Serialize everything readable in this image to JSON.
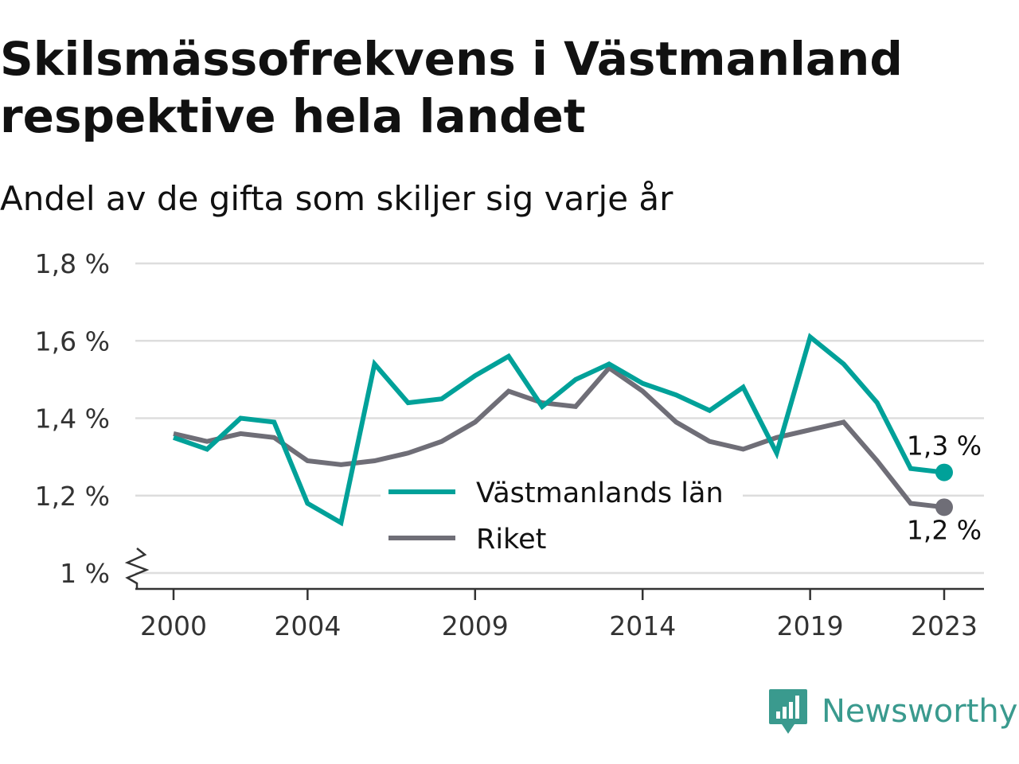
{
  "header": {
    "title": "Skilsmässofrekvens i Västmanland respektive hela landet",
    "subtitle": "Andel av de gifta som skiljer sig varje år"
  },
  "brand": {
    "name": "Newsworthy",
    "color": "#3a9a8e"
  },
  "chart_data": {
    "type": "line",
    "x": [
      2000,
      2001,
      2002,
      2003,
      2004,
      2005,
      2006,
      2007,
      2008,
      2009,
      2010,
      2011,
      2012,
      2013,
      2014,
      2015,
      2016,
      2017,
      2018,
      2019,
      2020,
      2021,
      2022,
      2023
    ],
    "series": [
      {
        "name": "Västmanlands län",
        "color": "#00a199",
        "values": [
          1.35,
          1.32,
          1.4,
          1.39,
          1.18,
          1.13,
          1.54,
          1.44,
          1.45,
          1.51,
          1.56,
          1.43,
          1.5,
          1.54,
          1.49,
          1.46,
          1.42,
          1.48,
          1.31,
          1.61,
          1.54,
          1.44,
          1.27,
          1.26
        ],
        "end_label": "1,3 %"
      },
      {
        "name": "Riket",
        "color": "#6f6e77",
        "values": [
          1.36,
          1.34,
          1.36,
          1.35,
          1.29,
          1.28,
          1.29,
          1.31,
          1.34,
          1.39,
          1.47,
          1.44,
          1.43,
          1.53,
          1.47,
          1.39,
          1.34,
          1.32,
          1.35,
          1.37,
          1.39,
          1.29,
          1.18,
          1.17
        ],
        "end_label": "1,2 %"
      }
    ],
    "xticks": [
      2000,
      2004,
      2009,
      2014,
      2019,
      2023
    ],
    "xtick_labels": [
      "2000",
      "2004",
      "2009",
      "2014",
      "2019",
      "2023"
    ],
    "yticks": [
      1.0,
      1.2,
      1.4,
      1.6,
      1.8
    ],
    "ytick_labels": [
      "1 %",
      "1,2 %",
      "1,4 %",
      "1,6 %",
      "1,8 %"
    ],
    "ylim": [
      1.0,
      1.8
    ],
    "xlim": [
      2000,
      2023
    ],
    "y_axis_break": true,
    "grid": "horizontal",
    "legend_placement": "bottom-center"
  }
}
